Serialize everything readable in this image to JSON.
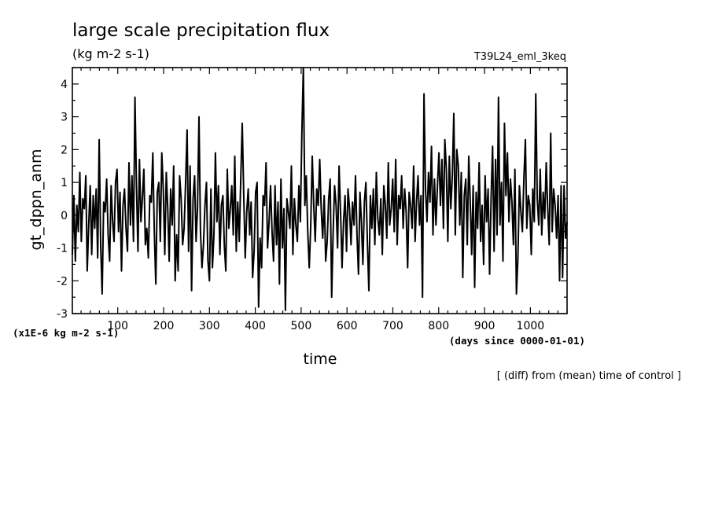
{
  "chart_data": {
    "type": "line",
    "title": "large scale precipitation flux",
    "subtitle": "(kg m-2 s-1)",
    "run_label": "T39L24_eml_3keq",
    "xlabel": "time",
    "x_units": "(days since 0000-01-01)",
    "ylabel": "gt_dppn_anm",
    "y_scale_note": "(x1E-6 kg m-2 s-1)",
    "footnote": "[ (diff) from (mean) time of control ]",
    "xlim": [
      1,
      1080
    ],
    "ylim": [
      -3,
      4.5
    ],
    "x_ticks": [
      100,
      200,
      300,
      400,
      500,
      600,
      700,
      800,
      900,
      1000
    ],
    "y_ticks": [
      -3,
      -2,
      -1,
      0,
      1,
      2,
      3,
      4
    ],
    "x_tick_labels": [
      "100",
      "200",
      "300",
      "400",
      "500",
      "600",
      "700",
      "800",
      "900",
      "1000"
    ],
    "y_tick_labels": [
      "-3",
      "-2",
      "-1",
      "0",
      "1",
      "2",
      "3",
      "4"
    ],
    "grid": false,
    "series": [
      {
        "values": [
          -1.2,
          0.6,
          -1.4,
          0.3,
          -0.5,
          1.3,
          -0.8,
          0.5,
          0.2,
          1.2,
          -1.7,
          -0.3,
          0.9,
          -1.2,
          0.6,
          -0.4,
          0.8,
          -1.3,
          2.3,
          -0.9,
          -2.4,
          0.4,
          0.1,
          1.1,
          -0.6,
          -1.4,
          0.9,
          -0.2,
          -0.8,
          1.0,
          1.4,
          -0.5,
          0.7,
          -1.7,
          0.3,
          0.8,
          -0.4,
          -1.1,
          1.6,
          -0.3,
          1.2,
          -0.8,
          3.6,
          0.9,
          -1.1,
          1.7,
          -0.2,
          0.5,
          1.4,
          -0.9,
          -0.4,
          -1.3,
          0.6,
          0.4,
          1.9,
          -0.5,
          -2.1,
          0.7,
          1.0,
          -0.8,
          1.9,
          0.8,
          -1.2,
          1.3,
          0.2,
          -1.4,
          0.8,
          -0.3,
          1.5,
          -2.0,
          -0.6,
          -1.7,
          1.2,
          0.5,
          -0.9,
          -0.4,
          1.0,
          2.6,
          -1.1,
          1.5,
          -2.3,
          0.5,
          1.2,
          -0.8,
          0.2,
          3.0,
          -0.5,
          -1.6,
          -0.9,
          0.3,
          1.0,
          -1.4,
          -2.0,
          0.8,
          -1.6,
          -0.6,
          1.9,
          -0.2,
          0.9,
          -1.2,
          0.3,
          0.6,
          -0.9,
          -1.7,
          1.4,
          -0.4,
          0.2,
          0.9,
          -0.6,
          1.8,
          -1.1,
          0.4,
          -0.8,
          1.1,
          2.8,
          0.6,
          -1.3,
          0.1,
          0.8,
          -0.6,
          0.4,
          -1.9,
          -1.1,
          0.7,
          1.0,
          -2.8,
          -0.7,
          -1.6,
          0.6,
          0.3,
          1.6,
          -1.0,
          -0.2,
          0.9,
          -0.5,
          -1.4,
          0.9,
          -0.9,
          0.4,
          -2.1,
          1.1,
          -1.0,
          0.2,
          -2.9,
          0.5,
          0.1,
          -0.4,
          1.5,
          -1.2,
          0.5,
          -0.3,
          -0.8,
          0.9,
          -0.2,
          2.5,
          4.5,
          0.3,
          1.2,
          -0.5,
          -1.6,
          -0.3,
          1.8,
          0.3,
          -0.8,
          0.8,
          0.3,
          1.7,
          0.2,
          -0.7,
          0.6,
          -1.4,
          -0.8,
          0.5,
          1.1,
          -2.5,
          -0.5,
          0.9,
          0.3,
          -1.0,
          1.5,
          0.1,
          -1.6,
          -0.2,
          0.6,
          -1.1,
          0.8,
          0.2,
          -0.9,
          0.4,
          -0.3,
          1.2,
          -0.6,
          -1.8,
          0.7,
          -0.2,
          -1.5,
          0.4,
          1.0,
          -0.8,
          -2.3,
          0.6,
          -0.4,
          0.8,
          -0.9,
          1.3,
          -0.1,
          -0.6,
          0.5,
          -1.2,
          0.9,
          0.3,
          -0.7,
          1.6,
          -0.3,
          0.2,
          1.1,
          -0.5,
          1.7,
          -0.9,
          0.6,
          0.2,
          1.2,
          -0.4,
          0.8,
          0.1,
          -1.6,
          0.7,
          0.3,
          -0.4,
          1.5,
          -0.8,
          0.4,
          1.2,
          -0.3,
          0.6,
          -2.5,
          3.7,
          0.8,
          -0.2,
          1.3,
          0.4,
          2.1,
          -0.6,
          1.1,
          -0.3,
          0.9,
          1.9,
          0.3,
          1.7,
          -0.4,
          2.3,
          1.4,
          -0.8,
          1.8,
          0.2,
          1.2,
          3.1,
          -0.6,
          2.0,
          1.5,
          -0.3,
          1.3,
          -1.9,
          0.6,
          1.1,
          -0.9,
          1.8,
          0.4,
          -1.2,
          0.9,
          -2.2,
          0.7,
          -0.4,
          1.6,
          -0.8,
          0.3,
          -1.5,
          1.2,
          -0.2,
          0.8,
          -1.8,
          0.5,
          2.1,
          -1.1,
          1.7,
          -0.6,
          3.6,
          -0.3,
          1.0,
          -1.4,
          2.8,
          0.6,
          1.9,
          -0.2,
          1.1,
          0.4,
          -0.9,
          1.4,
          -2.4,
          -1.3,
          0.9,
          0.1,
          -0.5,
          1.1,
          2.3,
          -0.4,
          0.6,
          0.3,
          -1.2,
          0.8,
          -0.2,
          3.7,
          0.5,
          -0.3,
          1.4,
          -0.6,
          0.7,
          -0.1,
          1.6,
          0.2,
          -0.9,
          2.5,
          -0.5,
          0.8,
          0.3,
          -0.7,
          0.6,
          -2.0,
          0.9,
          -1.9,
          0.9,
          -0.7,
          -0.2
        ]
      }
    ]
  }
}
